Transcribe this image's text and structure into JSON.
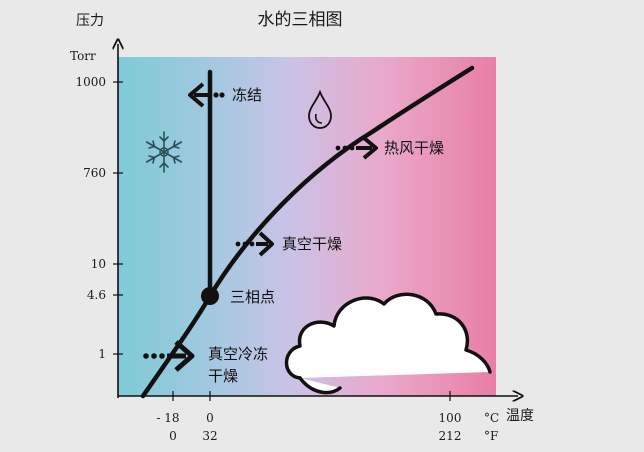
{
  "diagram": {
    "title": "水的三相图",
    "y_axis": {
      "label": "压力",
      "unit": "Torr"
    },
    "x_axis": {
      "label": "温度"
    },
    "y_ticks": [
      {
        "label": "1000",
        "value": 1000
      },
      {
        "label": "760",
        "value": 760
      },
      {
        "label": "10",
        "value": 10
      },
      {
        "label": "4.6",
        "value": 4.6
      },
      {
        "label": "1",
        "value": 1
      }
    ],
    "x_ticks": [
      {
        "celsius": "- 18",
        "fahrenheit": "0"
      },
      {
        "celsius": "0",
        "fahrenheit": "32"
      },
      {
        "celsius": "100",
        "fahrenheit": "212"
      }
    ],
    "x_units": {
      "celsius": "°C",
      "fahrenheit": "°F"
    },
    "annotations": {
      "freeze": "冻结",
      "hot_air_dry": "热风干燥",
      "vacuum_dry": "真空干燥",
      "triple_point": "三相点",
      "freeze_dry_line1": "真空冷冻",
      "freeze_dry_line2": "干燥"
    },
    "icons": [
      "snowflake-icon",
      "water-drop-icon",
      "cloud-icon"
    ],
    "colors": {
      "solid_region": "#7fcad6",
      "middle_region": "#c9c3e6",
      "liquid_region": "#e97ea6",
      "ink": "#111111"
    }
  }
}
